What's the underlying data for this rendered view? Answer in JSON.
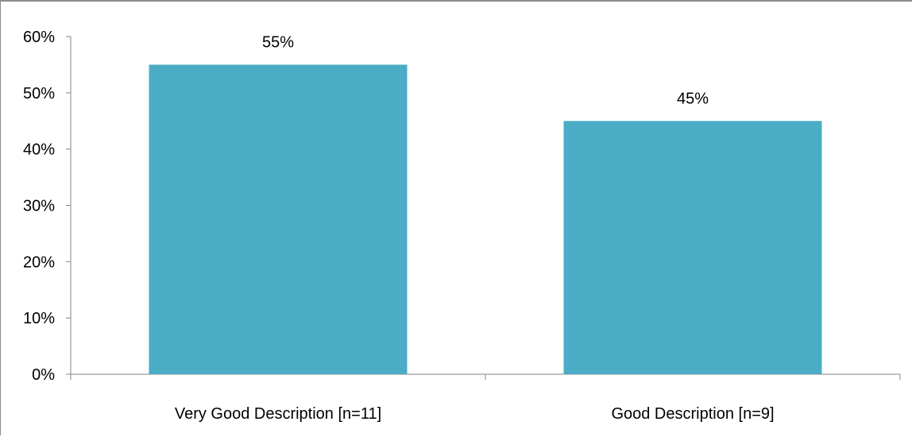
{
  "chart_data": {
    "type": "bar",
    "categories": [
      "Very Good Description [n=11]",
      "Good Description  [n=9]"
    ],
    "values": [
      55,
      45
    ],
    "data_labels": [
      "55%",
      "45%"
    ],
    "ylim": [
      0,
      60
    ],
    "y_ticks": [
      0,
      10,
      20,
      30,
      40,
      50,
      60
    ],
    "y_tick_labels": [
      "0%",
      "10%",
      "20%",
      "30%",
      "40%",
      "50%",
      "60%"
    ],
    "title": "",
    "xlabel": "",
    "ylabel": "",
    "grid": false,
    "legend": "none",
    "bar_color": "#4bacc6",
    "axis_color": "#868686"
  }
}
